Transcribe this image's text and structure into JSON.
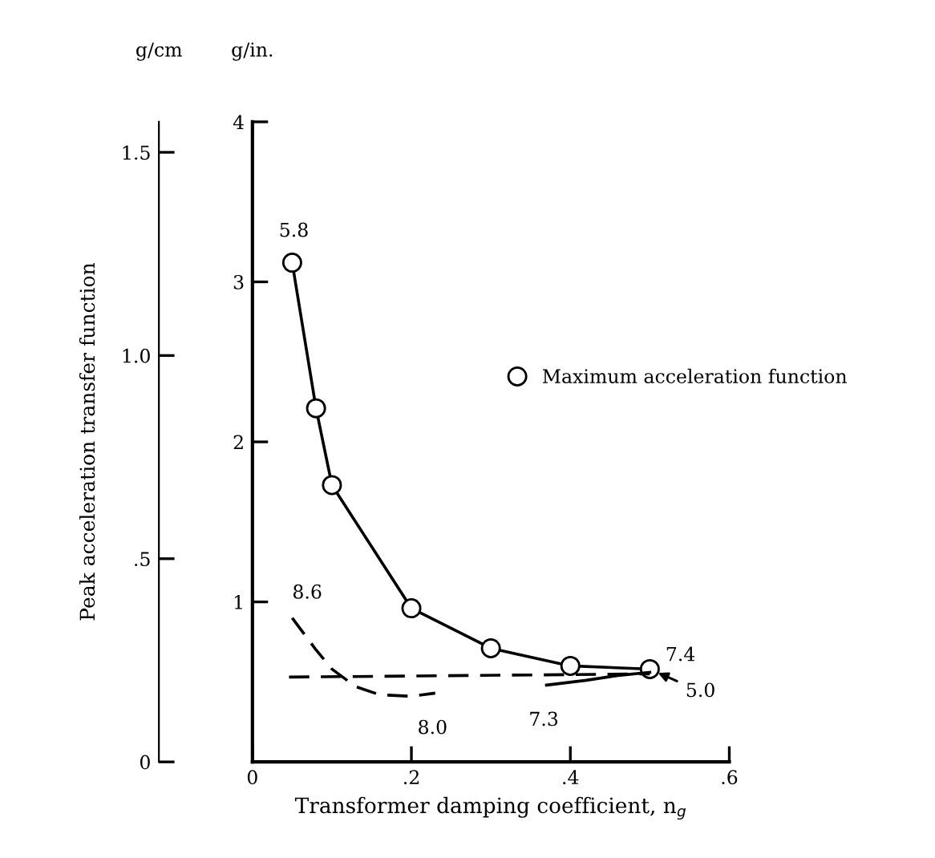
{
  "chart_data": {
    "type": "line",
    "xlabel": "Transformer damping coefficient, n$_{g}$",
    "ylabel": "Peak acceleration transfer function",
    "y2label": "g/in.",
    "xlim": [
      0,
      0.6
    ],
    "xticks": [
      0,
      {
        "value": 0.2,
        "label": ".2"
      },
      {
        "value": 0.4,
        "label": ".4"
      },
      {
        "value": 0.6,
        "label": ".6"
      }
    ],
    "ylim": [
      0,
      1.575
    ],
    "yticks": [
      0,
      {
        "value": 0.5,
        "label": ".5"
      },
      {
        "value": 1.0,
        "label": "1.0"
      },
      {
        "value": 1.5,
        "label": "1.5"
      }
    ],
    "y2lim": [
      0,
      4
    ],
    "y2ticks": [
      1,
      2,
      3,
      4
    ],
    "grid": false,
    "legend": "right",
    "series": [
      {
        "name": "Maximum acceleration function",
        "axis": "y2",
        "color": "#000000",
        "marker": "circle",
        "line_style": "solid",
        "x": [
          0.05,
          0.08,
          0.1,
          0.2,
          0.3,
          0.4,
          0.5
        ],
        "values": [
          3.12,
          2.21,
          1.73,
          0.96,
          0.71,
          0.6,
          0.58
        ]
      },
      {
        "axis": "y2",
        "color": "#000000",
        "marker": "none",
        "line_style": "dashed",
        "x": [
          0.046,
          0.5
        ],
        "values": [
          0.53,
          0.55
        ]
      },
      {
        "axis": "y2",
        "color": "#000000",
        "marker": "none",
        "line_style": "dashed",
        "x": [
          0.05,
          0.08,
          0.1,
          0.13,
          0.16,
          0.2,
          0.23
        ],
        "values": [
          0.9,
          0.7,
          0.58,
          0.47,
          0.42,
          0.41,
          0.43
        ]
      },
      {
        "axis": "y2",
        "color": "#000000",
        "marker": "none",
        "line_style": "solid",
        "x": [
          0.37,
          0.42,
          0.46,
          0.5
        ],
        "values": [
          0.48,
          0.51,
          0.54,
          0.56
        ]
      }
    ],
    "annotations": [
      {
        "text": "5.8",
        "x": 0.05,
        "y": 1.228
      },
      {
        "text": "8.6",
        "x": 0.05,
        "y": 0.354
      },
      {
        "text": "8.0",
        "x": 0.23,
        "y": 0.169
      },
      {
        "text": "7.3",
        "x": 0.37,
        "y": 0.189
      },
      {
        "text": "7.4",
        "x": 0.5,
        "y": 0.228
      },
      {
        "text": "5.0",
        "x": 0.5,
        "y": 0.228
      },
      "g/cm"
    ]
  }
}
